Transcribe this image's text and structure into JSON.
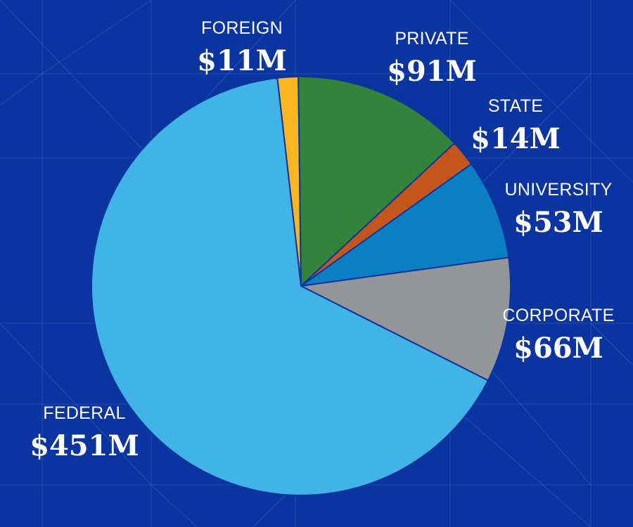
{
  "chart_data": {
    "type": "pie",
    "unit": "$M",
    "slices": [
      {
        "label": "FOREIGN",
        "value_label": "$11M",
        "value": 11,
        "color": "#fbb51e"
      },
      {
        "label": "PRIVATE",
        "value_label": "$91M",
        "value": 91,
        "color": "#33843a"
      },
      {
        "label": "STATE",
        "value_label": "$14M",
        "value": 14,
        "color": "#c4561c"
      },
      {
        "label": "UNIVERSITY",
        "value_label": "$53M",
        "value": 53,
        "color": "#0a80c2"
      },
      {
        "label": "CORPORATE",
        "value_label": "$66M",
        "value": 66,
        "color": "#939598"
      },
      {
        "label": "FEDERAL",
        "value_label": "$451M",
        "value": 451,
        "color": "#40b4e6"
      }
    ]
  },
  "colors": {
    "background": "#0a35a0",
    "pattern_lines": "#3a5fc0",
    "slice_border": "#0a35a0",
    "label_text": "#ffffff"
  }
}
